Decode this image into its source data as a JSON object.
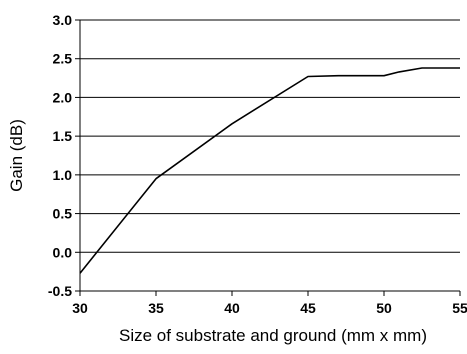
{
  "chart_data": {
    "type": "line",
    "title": "",
    "xlabel": "Size of substrate and ground (mm x mm)",
    "ylabel": "Gain (dB)",
    "xlim": [
      30,
      55
    ],
    "ylim": [
      -0.5,
      3.0
    ],
    "xticks": [
      "30",
      "35",
      "40",
      "45",
      "50",
      "55"
    ],
    "yticks": [
      "3.0",
      "2.5",
      "2.0",
      "1.5",
      "1.0",
      "0.5",
      "0.0",
      "-0.5"
    ],
    "grid": "horizontal",
    "legend": "none",
    "line_color": "#000000",
    "series": [
      {
        "x": [
          30,
          35,
          40,
          45,
          47,
          50,
          51,
          52.5,
          53.5,
          55
        ],
        "y": [
          -0.27,
          0.95,
          1.66,
          2.27,
          2.28,
          2.28,
          2.33,
          2.38,
          2.38,
          2.38
        ]
      }
    ]
  }
}
